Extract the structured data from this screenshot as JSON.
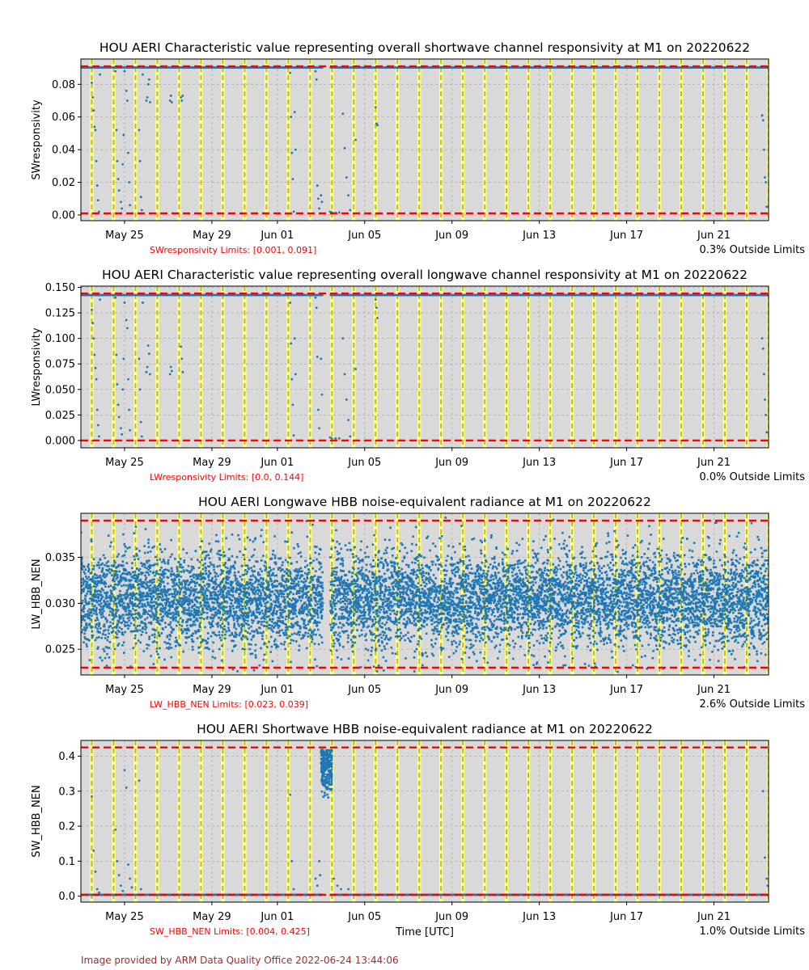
{
  "footer": {
    "credit": "Image provided by ARM Data Quality Office 2022-06-24 13:44:06"
  },
  "colors": {
    "marker": "#1f77b4",
    "limit": "#ff0000",
    "day_band": "#d9d9d9",
    "night_band": "#ffff99",
    "boundary": "#bfbf00"
  },
  "chart_data": [
    {
      "type": "scatter",
      "title": "HOU AERI Characteristic value representing overall shortwave channel responsivity at M1 on 20220622",
      "ylabel": "SWresponsivity",
      "xlabel": "",
      "x_range": [
        "2022-05-23",
        "2022-06-23 12:00"
      ],
      "xticks": [
        "May 25",
        "May 29",
        "Jun 01",
        "Jun 05",
        "Jun 09",
        "Jun 13",
        "Jun 17",
        "Jun 21"
      ],
      "ylim": [
        -0.0035,
        0.0955
      ],
      "yticks": [
        "0.00",
        "0.02",
        "0.04",
        "0.06",
        "0.08"
      ],
      "ytick_values": [
        0,
        0.02,
        0.04,
        0.06,
        0.08
      ],
      "limits": [
        0.001,
        0.091
      ],
      "limits_text": "SWresponsivity Limits: [0.001, 0.091]",
      "outside_text": "0.3% Outside Limits",
      "grid": true,
      "baseline": 0.0903,
      "gap": [
        "2022-06-03 02:00",
        "2022-06-03 10:00"
      ],
      "low_points": [
        [
          "2022-05-23 12:00",
          0.081
        ],
        [
          "2022-05-23 13:00",
          0.072
        ],
        [
          "2022-05-23 14:00",
          0.064
        ],
        [
          "2022-05-23 15:00",
          0.054
        ],
        [
          "2022-05-23 16:00",
          0.052
        ],
        [
          "2022-05-23 17:00",
          0.033
        ],
        [
          "2022-05-23 18:00",
          0.018
        ],
        [
          "2022-05-23 19:00",
          0.009
        ],
        [
          "2022-05-23 20:00",
          0.002
        ],
        [
          "2022-05-23 21:00",
          0.086
        ],
        [
          "2022-05-24 14:00",
          0.088
        ],
        [
          "2022-05-24 15:00",
          0.052
        ],
        [
          "2022-05-24 16:00",
          0.033
        ],
        [
          "2022-05-24 17:00",
          0.022
        ],
        [
          "2022-05-24 18:00",
          0.015
        ],
        [
          "2022-05-24 20:00",
          0.008
        ],
        [
          "2022-05-24 21:00",
          0.004
        ],
        [
          "2022-05-24 22:00",
          0.031
        ],
        [
          "2022-05-24 23:00",
          0.049
        ],
        [
          "2022-05-25 00:00",
          0.088
        ],
        [
          "2022-05-25 02:00",
          0.076
        ],
        [
          "2022-05-25 03:00",
          0.07
        ],
        [
          "2022-05-25 04:00",
          0.038
        ],
        [
          "2022-05-25 05:00",
          0.02
        ],
        [
          "2022-05-25 06:00",
          0.006
        ],
        [
          "2022-05-25 16:00",
          0.052
        ],
        [
          "2022-05-25 17:00",
          0.033
        ],
        [
          "2022-05-25 18:00",
          0.011
        ],
        [
          "2022-05-25 19:00",
          0.003
        ],
        [
          "2022-05-25 20:00",
          0.086
        ],
        [
          "2022-05-26 00:00",
          0.07
        ],
        [
          "2022-05-26 01:00",
          0.072
        ],
        [
          "2022-05-26 02:00",
          0.08
        ],
        [
          "2022-05-26 03:00",
          0.083
        ],
        [
          "2022-05-26 04:00",
          0.069
        ],
        [
          "2022-05-27 02:00",
          0.07
        ],
        [
          "2022-05-27 03:00",
          0.073
        ],
        [
          "2022-05-27 04:00",
          0.069
        ],
        [
          "2022-05-27 14:00",
          0.072
        ],
        [
          "2022-05-27 15:00",
          0.07
        ],
        [
          "2022-05-27 16:00",
          0.073
        ],
        [
          "2022-06-01 14:00",
          0.087
        ],
        [
          "2022-06-01 15:00",
          0.06
        ],
        [
          "2022-06-01 16:00",
          0.038
        ],
        [
          "2022-06-01 17:00",
          0.022
        ],
        [
          "2022-06-01 18:00",
          0.002
        ],
        [
          "2022-06-01 19:00",
          0.063
        ],
        [
          "2022-06-01 20:00",
          0.04
        ],
        [
          "2022-06-02 18:00",
          0.088
        ],
        [
          "2022-06-02 19:00",
          0.083
        ],
        [
          "2022-06-02 20:00",
          0.018
        ],
        [
          "2022-06-02 21:00",
          0.01
        ],
        [
          "2022-06-02 22:00",
          0.004
        ],
        [
          "2022-06-03 00:00",
          0.012
        ],
        [
          "2022-06-03 01:00",
          0.008
        ],
        [
          "2022-06-03 10:00",
          0.002
        ],
        [
          "2022-06-03 12:00",
          0.0015
        ],
        [
          "2022-06-03 16:00",
          0.0012
        ],
        [
          "2022-06-03 20:00",
          0.0015
        ],
        [
          "2022-06-04 00:00",
          0.062
        ],
        [
          "2022-06-04 02:00",
          0.041
        ],
        [
          "2022-06-04 04:00",
          0.023
        ],
        [
          "2022-06-04 06:00",
          0.012
        ],
        [
          "2022-06-04 08:00",
          0.003
        ],
        [
          "2022-06-04 14:00",
          0.046
        ],
        [
          "2022-06-05 12:00",
          0.066
        ],
        [
          "2022-06-05 13:00",
          0.056
        ],
        [
          "2022-06-05 14:00",
          0.055
        ],
        [
          "2022-06-23 05:00",
          0.061
        ],
        [
          "2022-06-23 06:00",
          0.058
        ],
        [
          "2022-06-23 07:00",
          0.04
        ],
        [
          "2022-06-23 08:00",
          0.023
        ],
        [
          "2022-06-23 09:00",
          0.02
        ],
        [
          "2022-06-23 10:00",
          0.005
        ]
      ]
    },
    {
      "type": "scatter",
      "title": "HOU AERI Characteristic value representing overall longwave channel responsivity at M1 on 20220622",
      "ylabel": "LWresponsivity",
      "xlabel": "",
      "x_range": [
        "2022-05-23",
        "2022-06-23 12:00"
      ],
      "xticks": [
        "May 25",
        "May 29",
        "Jun 01",
        "Jun 05",
        "Jun 09",
        "Jun 13",
        "Jun 17",
        "Jun 21"
      ],
      "ylim": [
        -0.0072,
        0.1512
      ],
      "yticks": [
        "0.000",
        "0.025",
        "0.050",
        "0.075",
        "0.100",
        "0.125",
        "0.150"
      ],
      "ytick_values": [
        0,
        0.025,
        0.05,
        0.075,
        0.1,
        0.125,
        0.15
      ],
      "limits": [
        0.0,
        0.144
      ],
      "limits_text": "LWresponsivity Limits: [0.0, 0.144]",
      "outside_text": "0.0% Outside Limits",
      "grid": true,
      "baseline": 0.1425,
      "gap": [
        "2022-06-03 02:00",
        "2022-06-03 10:00"
      ],
      "low_points": [
        [
          "2022-05-23 12:00",
          0.128
        ],
        [
          "2022-05-23 13:00",
          0.115
        ],
        [
          "2022-05-23 14:00",
          0.1
        ],
        [
          "2022-05-23 15:00",
          0.084
        ],
        [
          "2022-05-23 16:00",
          0.071
        ],
        [
          "2022-05-23 17:00",
          0.06
        ],
        [
          "2022-05-23 18:00",
          0.03
        ],
        [
          "2022-05-23 19:00",
          0.015
        ],
        [
          "2022-05-23 20:00",
          0.004
        ],
        [
          "2022-05-23 21:00",
          0.138
        ],
        [
          "2022-05-24 14:00",
          0.14
        ],
        [
          "2022-05-24 15:00",
          0.084
        ],
        [
          "2022-05-24 16:00",
          0.055
        ],
        [
          "2022-05-24 17:00",
          0.035
        ],
        [
          "2022-05-24 18:00",
          0.023
        ],
        [
          "2022-05-24 20:00",
          0.012
        ],
        [
          "2022-05-24 21:00",
          0.006
        ],
        [
          "2022-05-24 22:00",
          0.05
        ],
        [
          "2022-05-24 23:00",
          0.08
        ],
        [
          "2022-05-25 00:00",
          0.135
        ],
        [
          "2022-05-25 02:00",
          0.118
        ],
        [
          "2022-05-25 03:00",
          0.11
        ],
        [
          "2022-05-25 04:00",
          0.06
        ],
        [
          "2022-05-25 05:00",
          0.03
        ],
        [
          "2022-05-25 06:00",
          0.01
        ],
        [
          "2022-05-25 16:00",
          0.08
        ],
        [
          "2022-05-25 17:00",
          0.05
        ],
        [
          "2022-05-25 18:00",
          0.018
        ],
        [
          "2022-05-25 19:00",
          0.004
        ],
        [
          "2022-05-25 20:00",
          0.135
        ],
        [
          "2022-05-26 00:00",
          0.067
        ],
        [
          "2022-05-26 01:00",
          0.072
        ],
        [
          "2022-05-26 02:00",
          0.093
        ],
        [
          "2022-05-26 03:00",
          0.085
        ],
        [
          "2022-05-26 04:00",
          0.065
        ],
        [
          "2022-05-27 02:00",
          0.065
        ],
        [
          "2022-05-27 03:00",
          0.072
        ],
        [
          "2022-05-27 04:00",
          0.068
        ],
        [
          "2022-05-27 14:00",
          0.092
        ],
        [
          "2022-05-27 15:00",
          0.08
        ],
        [
          "2022-05-27 16:00",
          0.067
        ],
        [
          "2022-06-01 14:00",
          0.135
        ],
        [
          "2022-06-01 15:00",
          0.095
        ],
        [
          "2022-06-01 16:00",
          0.06
        ],
        [
          "2022-06-01 17:00",
          0.035
        ],
        [
          "2022-06-01 18:00",
          0.005
        ],
        [
          "2022-06-01 19:00",
          0.1
        ],
        [
          "2022-06-01 20:00",
          0.065
        ],
        [
          "2022-06-02 18:00",
          0.14
        ],
        [
          "2022-06-02 19:00",
          0.13
        ],
        [
          "2022-06-02 20:00",
          0.082
        ],
        [
          "2022-06-02 21:00",
          0.03
        ],
        [
          "2022-06-02 22:00",
          0.012
        ],
        [
          "2022-06-03 00:00",
          0.08
        ],
        [
          "2022-06-03 01:00",
          0.045
        ],
        [
          "2022-06-03 10:00",
          0.003
        ],
        [
          "2022-06-03 12:00",
          0.002
        ],
        [
          "2022-06-03 16:00",
          0.002
        ],
        [
          "2022-06-03 20:00",
          0.002
        ],
        [
          "2022-06-04 00:00",
          0.1
        ],
        [
          "2022-06-04 02:00",
          0.065
        ],
        [
          "2022-06-04 04:00",
          0.04
        ],
        [
          "2022-06-04 06:00",
          0.02
        ],
        [
          "2022-06-04 08:00",
          0.004
        ],
        [
          "2022-06-04 14:00",
          0.07
        ],
        [
          "2022-06-05 12:00",
          0.138
        ],
        [
          "2022-06-05 13:00",
          0.13
        ],
        [
          "2022-06-05 14:00",
          0.12
        ],
        [
          "2022-06-23 05:00",
          0.1
        ],
        [
          "2022-06-23 06:00",
          0.09
        ],
        [
          "2022-06-23 07:00",
          0.065
        ],
        [
          "2022-06-23 08:00",
          0.04
        ],
        [
          "2022-06-23 09:00",
          0.025
        ],
        [
          "2022-06-23 10:00",
          0.008
        ]
      ]
    },
    {
      "type": "scatter",
      "title": "HOU AERI Longwave HBB noise-equivalent radiance at M1 on 20220622",
      "ylabel": "LW_HBB_NEN",
      "xlabel": "",
      "x_range": [
        "2022-05-23",
        "2022-06-23 12:00"
      ],
      "xticks": [
        "May 25",
        "May 29",
        "Jun 01",
        "Jun 05",
        "Jun 09",
        "Jun 13",
        "Jun 17",
        "Jun 21"
      ],
      "ylim": [
        0.0222,
        0.0398
      ],
      "yticks": [
        "0.025",
        "0.030",
        "0.035"
      ],
      "ytick_values": [
        0.025,
        0.03,
        0.035
      ],
      "limits": [
        0.023,
        0.039
      ],
      "limits_text": "LW_HBB_NEN Limits: [0.023, 0.039]",
      "outside_text": "2.6% Outside Limits",
      "grid": true,
      "cloud": {
        "center": 0.0305,
        "spread": 0.0026,
        "min": 0.0225,
        "max": 0.0397
      },
      "gap": [
        "2022-06-03 02:00",
        "2022-06-03 10:00"
      ]
    },
    {
      "type": "scatter",
      "title": "HOU AERI Shortwave HBB noise-equivalent radiance at M1 on 20220622",
      "ylabel": "SW_HBB_NEN",
      "xlabel": "Time [UTC]",
      "x_range": [
        "2022-05-23",
        "2022-06-23 12:00"
      ],
      "xticks": [
        "May 25",
        "May 29",
        "Jun 01",
        "Jun 05",
        "Jun 09",
        "Jun 13",
        "Jun 17",
        "Jun 21"
      ],
      "ylim": [
        -0.017,
        0.445
      ],
      "yticks": [
        "0.0",
        "0.1",
        "0.2",
        "0.3",
        "0.4"
      ],
      "ytick_values": [
        0,
        0.1,
        0.2,
        0.3,
        0.4
      ],
      "limits": [
        0.004,
        0.425
      ],
      "limits_text": "SW_HBB_NEN Limits: [0.004, 0.425]",
      "outside_text": "1.0% Outside Limits",
      "grid": true,
      "baseline": 0.004,
      "gap": [
        "2022-06-03 02:00",
        "2022-06-03 10:00"
      ],
      "burst": {
        "start": "2022-06-03 00:00",
        "end": "2022-06-03 12:00",
        "low": 0.28,
        "high": 0.42
      },
      "high_points": [
        [
          "2022-05-23 12:00",
          0.285
        ],
        [
          "2022-05-23 14:00",
          0.13
        ],
        [
          "2022-05-23 16:00",
          0.07
        ],
        [
          "2022-05-23 18:00",
          0.02
        ],
        [
          "2022-05-23 20:00",
          0.01
        ],
        [
          "2022-05-24 14:00",
          0.19
        ],
        [
          "2022-05-24 16:00",
          0.1
        ],
        [
          "2022-05-24 18:00",
          0.06
        ],
        [
          "2022-05-24 20:00",
          0.03
        ],
        [
          "2022-05-24 22:00",
          0.015
        ],
        [
          "2022-05-25 00:00",
          0.36
        ],
        [
          "2022-05-25 02:00",
          0.31
        ],
        [
          "2022-05-25 04:00",
          0.09
        ],
        [
          "2022-05-25 06:00",
          0.05
        ],
        [
          "2022-05-25 08:00",
          0.025
        ],
        [
          "2022-05-25 16:00",
          0.33
        ],
        [
          "2022-05-25 18:00",
          0.02
        ],
        [
          "2022-06-01 14:00",
          0.29
        ],
        [
          "2022-06-01 16:00",
          0.1
        ],
        [
          "2022-06-01 18:00",
          0.02
        ],
        [
          "2022-06-02 18:00",
          0.05
        ],
        [
          "2022-06-02 20:00",
          0.03
        ],
        [
          "2022-06-02 22:00",
          0.1
        ],
        [
          "2022-06-02 23:00",
          0.06
        ],
        [
          "2022-06-03 14:00",
          0.05
        ],
        [
          "2022-06-03 18:00",
          0.03
        ],
        [
          "2022-06-03 22:00",
          0.02
        ],
        [
          "2022-06-04 06:00",
          0.02
        ],
        [
          "2022-06-23 06:00",
          0.3
        ],
        [
          "2022-06-23 08:00",
          0.11
        ],
        [
          "2022-06-23 10:00",
          0.05
        ],
        [
          "2022-06-23 11:00",
          0.03
        ]
      ]
    }
  ]
}
